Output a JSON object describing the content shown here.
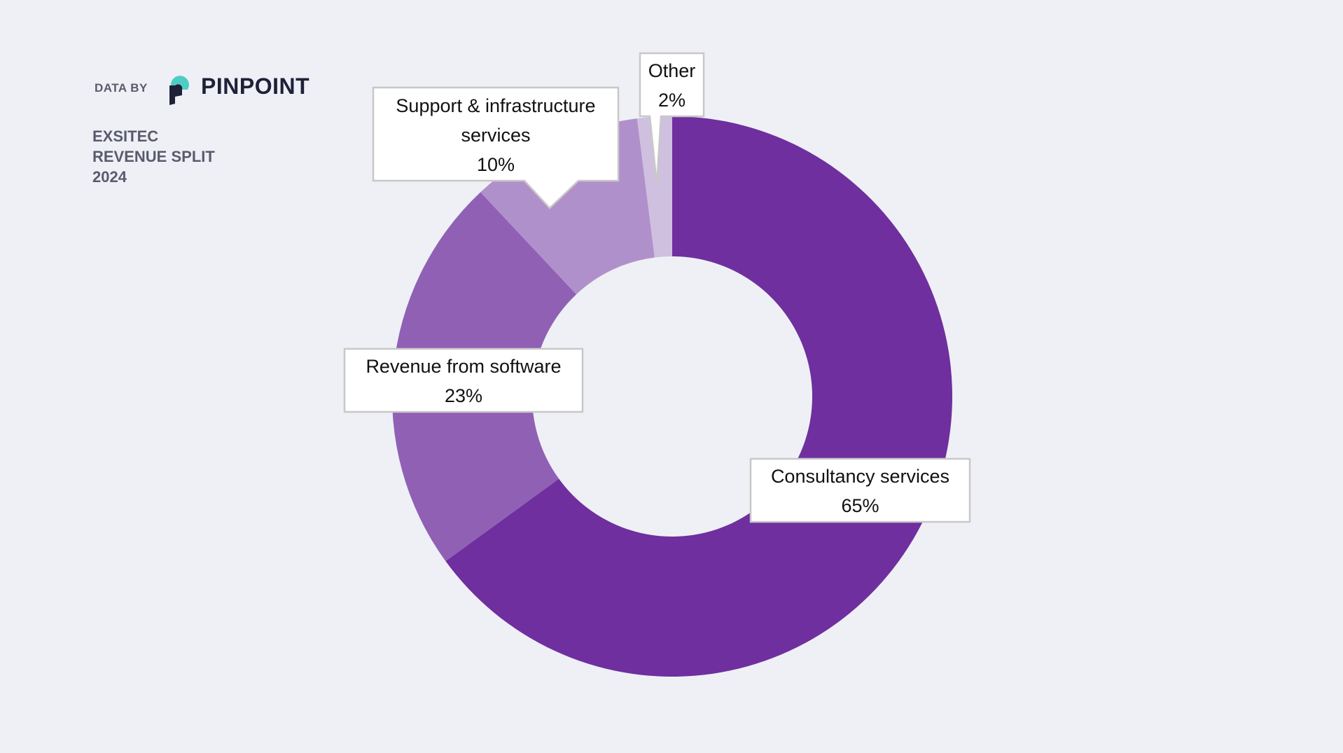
{
  "header": {
    "data_by": "DATA BY",
    "brand": "PINPOINT",
    "title_lines": [
      "EXSITEC",
      "REVENUE SPLIT",
      "2024"
    ]
  },
  "colors": {
    "background": "#eef0f5",
    "brand_teal": "#4ecdc4",
    "brand_navy": "#1e2138"
  },
  "chart_data": {
    "type": "pie",
    "variant": "donut",
    "title": "EXSITEC REVENUE SPLIT 2024",
    "categories": [
      "Consultancy services",
      "Revenue from software",
      "Support & infrastructure services",
      "Other"
    ],
    "values": [
      65,
      23,
      10,
      2
    ],
    "value_labels": [
      "65%",
      "23%",
      "10%",
      "2%"
    ],
    "colors": [
      "#6f2f9f",
      "#9060b5",
      "#b090ca",
      "#cfc0df"
    ],
    "start": "top",
    "direction": "clockwise",
    "legend": "none"
  },
  "labels": {
    "consultancy": {
      "name": "Consultancy services",
      "pct": "65%"
    },
    "software": {
      "name": "Revenue from software",
      "pct": "23%"
    },
    "support": {
      "name1": "Support & infrastructure",
      "name2": "services",
      "pct": "10%"
    },
    "other": {
      "name": "Other",
      "pct": "2%"
    }
  }
}
